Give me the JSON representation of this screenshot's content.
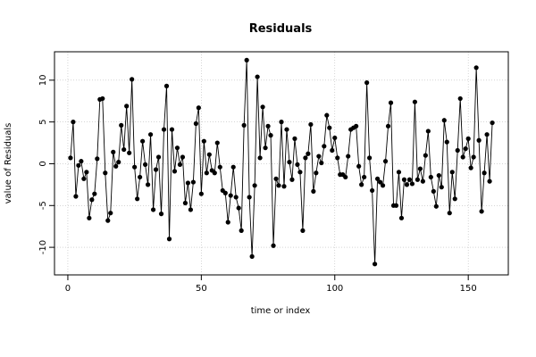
{
  "chart_data": {
    "type": "line",
    "title": "Residuals",
    "xlabel": "time or index",
    "ylabel": "value of Residuals",
    "xlim": [
      -5,
      165
    ],
    "ylim": [
      -13.3,
      13.4
    ],
    "xticks": [
      0,
      50,
      100,
      150
    ],
    "yticks": [
      -10,
      -5,
      0,
      5,
      10
    ],
    "grid": true,
    "markers": "filled-circle",
    "series": [
      {
        "color": "#000000",
        "x": [
          1,
          2,
          3,
          4,
          5,
          6,
          7,
          8,
          9,
          10,
          11,
          12,
          13,
          14,
          15,
          16,
          17,
          18,
          19,
          20,
          21,
          22,
          23,
          24,
          25,
          26,
          27,
          28,
          29,
          30,
          31,
          32,
          33,
          34,
          35,
          36,
          37,
          38,
          39,
          40,
          41,
          42,
          43,
          44,
          45,
          46,
          47,
          48,
          49,
          50,
          51,
          52,
          53,
          54,
          55,
          56,
          57,
          58,
          59,
          60,
          61,
          62,
          63,
          64,
          65,
          66,
          67,
          68,
          69,
          70,
          71,
          72,
          73,
          74,
          75,
          76,
          77,
          78,
          79,
          80,
          81,
          82,
          83,
          84,
          85,
          86,
          87,
          88,
          89,
          90,
          91,
          92,
          93,
          94,
          95,
          96,
          97,
          98,
          99,
          100,
          101,
          102,
          103,
          104,
          105,
          106,
          107,
          108,
          109,
          110,
          111,
          112,
          113,
          114,
          115,
          116,
          117,
          118,
          119,
          120,
          121,
          122,
          123,
          124,
          125,
          126,
          127,
          128,
          129,
          130,
          131,
          132,
          133,
          134,
          135,
          136,
          137,
          138,
          139,
          140,
          141,
          142,
          143,
          144,
          145,
          146,
          147,
          148,
          149,
          150,
          151,
          152,
          153,
          154,
          155,
          156,
          157,
          158,
          159
        ],
        "values": [
          0.7,
          5.0,
          -3.9,
          -0.2,
          0.3,
          -1.8,
          -1.0,
          -6.5,
          -4.3,
          -3.6,
          0.6,
          7.7,
          7.8,
          -1.1,
          -6.8,
          -5.9,
          1.4,
          -0.3,
          0.2,
          4.6,
          1.7,
          6.9,
          1.3,
          10.1,
          -0.4,
          -4.2,
          -1.6,
          2.7,
          -0.1,
          -2.5,
          3.5,
          -5.5,
          -0.7,
          0.8,
          -6.0,
          4.1,
          9.3,
          -9.0,
          4.1,
          -0.9,
          1.9,
          -0.1,
          0.8,
          -4.7,
          -2.3,
          -5.5,
          -2.2,
          4.8,
          6.7,
          -3.6,
          2.7,
          -1.1,
          1.1,
          -0.8,
          -1.1,
          2.5,
          -0.4,
          -3.2,
          -3.5,
          -7.0,
          -3.8,
          -0.4,
          -4.0,
          -5.3,
          -8.0,
          4.6,
          12.4,
          -4.0,
          -11.1,
          -2.6,
          10.4,
          0.7,
          6.8,
          1.9,
          4.5,
          3.4,
          -9.8,
          -1.8,
          -2.6,
          5.0,
          -2.7,
          4.1,
          0.2,
          -1.9,
          3.0,
          -0.1,
          -1.0,
          -8.0,
          0.7,
          1.2,
          4.7,
          -3.3,
          -1.1,
          0.9,
          0.1,
          2.1,
          5.8,
          4.3,
          1.6,
          3.1,
          0.7,
          -1.3,
          -1.3,
          -1.6,
          0.9,
          4.1,
          4.3,
          4.5,
          -0.3,
          -2.5,
          -1.6,
          9.7,
          0.7,
          -3.2,
          -12.0,
          -1.8,
          -2.2,
          -2.6,
          0.3,
          4.5,
          7.3,
          -5.0,
          -5.0,
          -1.0,
          -6.5,
          -1.9,
          -2.5,
          -1.9,
          -2.4,
          7.4,
          -1.9,
          -0.6,
          -2.1,
          1.0,
          3.9,
          -1.6,
          -3.3,
          -5.1,
          -1.4,
          -2.8,
          5.2,
          2.6,
          -5.9,
          -1.0,
          -4.2,
          1.6,
          7.8,
          0.8,
          1.8,
          3.0,
          -0.5,
          0.8,
          11.5,
          2.8,
          -5.7,
          -1.1,
          3.5,
          -2.1,
          4.9
        ]
      }
    ]
  }
}
